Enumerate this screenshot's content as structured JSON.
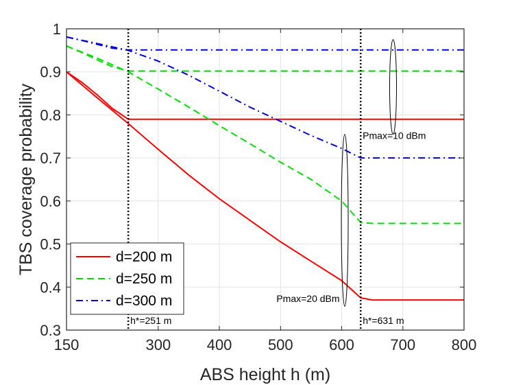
{
  "chart_data": {
    "type": "line",
    "title": "",
    "xlabel": "ABS height h (m)",
    "ylabel": "TBS coverage probability",
    "xlim": [
      150,
      800
    ],
    "ylim": [
      0.3,
      1.0
    ],
    "grid": true,
    "xticks": [
      150,
      300,
      400,
      500,
      600,
      700,
      800
    ],
    "xtick_labels": [
      "150",
      "300",
      "400",
      "500",
      "600",
      "700",
      "800"
    ],
    "yticks": [
      0.3,
      0.4,
      0.5,
      0.6,
      0.7,
      0.8,
      0.9,
      1.0
    ],
    "ytick_labels": [
      "0.3",
      "0.4",
      "0.5",
      "0.6",
      "0.7",
      "0.8",
      "0.9",
      "1"
    ],
    "legend_position": "bottom-left",
    "series": [
      {
        "name": "d=200 m",
        "color": "#ff0000",
        "style": "solid",
        "group": "Pmax=10 dBm",
        "x": [
          150,
          175,
          200,
          225,
          251,
          300,
          400,
          500,
          600,
          700,
          800
        ],
        "y": [
          0.9,
          0.876,
          0.847,
          0.815,
          0.79,
          0.79,
          0.79,
          0.79,
          0.79,
          0.79,
          0.79
        ]
      },
      {
        "name": "d=250 m",
        "color": "#00dd00",
        "style": "dashed",
        "group": "Pmax=10 dBm",
        "x": [
          150,
          175,
          200,
          225,
          251,
          300,
          400,
          500,
          600,
          700,
          800
        ],
        "y": [
          0.96,
          0.945,
          0.928,
          0.912,
          0.902,
          0.902,
          0.902,
          0.902,
          0.902,
          0.902,
          0.902
        ]
      },
      {
        "name": "d=300 m",
        "color": "#0000dd",
        "style": "dashdot",
        "group": "Pmax=10 dBm",
        "x": [
          150,
          175,
          200,
          225,
          251,
          300,
          400,
          500,
          600,
          700,
          800
        ],
        "y": [
          0.981,
          0.973,
          0.964,
          0.955,
          0.951,
          0.951,
          0.951,
          0.951,
          0.951,
          0.951,
          0.951
        ]
      },
      {
        "name": "d=200 m",
        "color": "#ff0000",
        "style": "solid",
        "group": "Pmax=20 dBm",
        "x": [
          150,
          200,
          251,
          300,
          350,
          400,
          450,
          500,
          550,
          600,
          631,
          650,
          700,
          800
        ],
        "y": [
          0.9,
          0.84,
          0.78,
          0.72,
          0.66,
          0.605,
          0.555,
          0.505,
          0.46,
          0.415,
          0.375,
          0.37,
          0.37,
          0.37
        ]
      },
      {
        "name": "d=250 m",
        "color": "#00dd00",
        "style": "dashed",
        "group": "Pmax=20 dBm",
        "x": [
          150,
          200,
          251,
          300,
          350,
          400,
          450,
          500,
          550,
          600,
          631,
          650,
          700,
          800
        ],
        "y": [
          0.96,
          0.932,
          0.9,
          0.86,
          0.818,
          0.775,
          0.733,
          0.69,
          0.65,
          0.6,
          0.55,
          0.548,
          0.548,
          0.548
        ]
      },
      {
        "name": "d=300 m",
        "color": "#0000dd",
        "style": "dashdot",
        "group": "Pmax=20 dBm",
        "x": [
          150,
          200,
          251,
          300,
          350,
          400,
          450,
          500,
          550,
          600,
          631,
          650,
          700,
          800
        ],
        "y": [
          0.981,
          0.966,
          0.95,
          0.925,
          0.892,
          0.855,
          0.818,
          0.785,
          0.752,
          0.722,
          0.7,
          0.7,
          0.7,
          0.7
        ]
      }
    ],
    "vlines": [
      {
        "x": 251,
        "label": "h*=251 m"
      },
      {
        "x": 631,
        "label": "h*=631 m"
      }
    ],
    "annotations": [
      {
        "text": "Pmax=10 dBm",
        "ellipse_center": [
          684,
          0.865
        ],
        "ellipse_radius_y": 0.11,
        "text_at": [
          686,
          0.744
        ]
      },
      {
        "text": "Pmax=20 dBm",
        "ellipse_center": [
          605,
          0.555
        ],
        "ellipse_radius_y": 0.2,
        "text_at": [
          545,
          0.365
        ]
      }
    ]
  }
}
